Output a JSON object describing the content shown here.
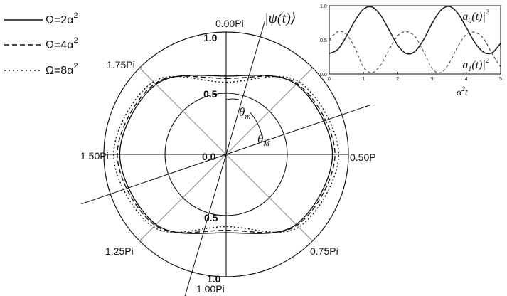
{
  "chart_data": [
    {
      "type": "polar-line",
      "angle_ticks": [
        "0.00Pi",
        "0.50P",
        "0.75Pi",
        "1.00Pi",
        "1.25Pi",
        "1.50Pi",
        "1.75Pi"
      ],
      "radial_ticks": [
        "1.0",
        "0.5",
        "0.0",
        "0.5",
        "1.0"
      ],
      "rlim": [
        0,
        1.0
      ],
      "angle_unit": "pi",
      "legend": {
        "placement": "top-left"
      },
      "series": [
        {
          "name": "Ω=2α²",
          "legend_main": "Ω=2α",
          "legend_sup": "2",
          "style": "solid",
          "points": [
            [
              0.0,
              0.64
            ],
            [
              0.25,
              0.81
            ],
            [
              0.5,
              0.87
            ],
            [
              0.75,
              0.81
            ],
            [
              1.0,
              0.64
            ],
            [
              1.25,
              0.81
            ],
            [
              1.5,
              0.87
            ],
            [
              1.75,
              0.81
            ]
          ]
        },
        {
          "name": "Ω=4α²",
          "legend_main": "Ω=4α",
          "legend_sup": "2",
          "style": "dashed",
          "points": [
            [
              0.0,
              0.62
            ],
            [
              0.25,
              0.82
            ],
            [
              0.5,
              0.89
            ],
            [
              0.75,
              0.82
            ],
            [
              1.0,
              0.62
            ],
            [
              1.25,
              0.82
            ],
            [
              1.5,
              0.89
            ],
            [
              1.75,
              0.82
            ]
          ]
        },
        {
          "name": "Ω=8α²",
          "legend_main": "Ω=8α",
          "legend_sup": "2",
          "style": "dotted",
          "points": [
            [
              0.0,
              0.59
            ],
            [
              0.25,
              0.84
            ],
            [
              0.5,
              0.92
            ],
            [
              0.75,
              0.84
            ],
            [
              1.0,
              0.59
            ],
            [
              1.25,
              0.84
            ],
            [
              1.5,
              0.92
            ],
            [
              1.75,
              0.84
            ]
          ]
        }
      ],
      "annotations": {
        "psi_label": "|ψ(t)⟩",
        "theta_m_main": "θ",
        "theta_m_sub": "m",
        "theta_M_main": "θ",
        "theta_M_sub": "M"
      }
    },
    {
      "type": "line",
      "xlabel_main": "α",
      "xlabel_sup": "2",
      "xlabel_tail": "t",
      "xlim": [
        0,
        5
      ],
      "ylim": [
        0,
        1.0
      ],
      "xticks": [
        "0",
        "1",
        "2",
        "3",
        "4",
        "5"
      ],
      "yticks": [
        "0.0",
        "0.5",
        "1.0"
      ],
      "x": [
        0,
        0.25,
        0.5,
        0.75,
        1.0,
        1.25,
        1.5,
        1.75,
        2.0,
        2.25,
        2.5,
        2.75,
        3.0,
        3.25,
        3.5,
        3.75,
        4.0,
        4.25,
        4.5,
        4.75,
        5.0
      ],
      "series": [
        {
          "name": "|a0(t)|²",
          "label_main": "|a",
          "label_sub": "0",
          "label_tail": "(t)|",
          "label_sup": "2",
          "style": "solid",
          "values": [
            0.3,
            0.36,
            0.55,
            0.78,
            0.95,
            0.98,
            0.86,
            0.64,
            0.42,
            0.3,
            0.33,
            0.5,
            0.74,
            0.93,
            0.99,
            0.89,
            0.68,
            0.46,
            0.32,
            0.31,
            0.45
          ]
        },
        {
          "name": "|a1(t)|²",
          "label_main": "|a",
          "label_sub": "1",
          "label_tail": "(t)|",
          "label_sup": "2",
          "style": "dashed",
          "values": [
            0.5,
            0.62,
            0.58,
            0.38,
            0.1,
            0.02,
            0.13,
            0.36,
            0.56,
            0.62,
            0.55,
            0.33,
            0.08,
            0.02,
            0.16,
            0.4,
            0.58,
            0.61,
            0.52,
            0.3,
            0.1
          ]
        }
      ]
    }
  ]
}
